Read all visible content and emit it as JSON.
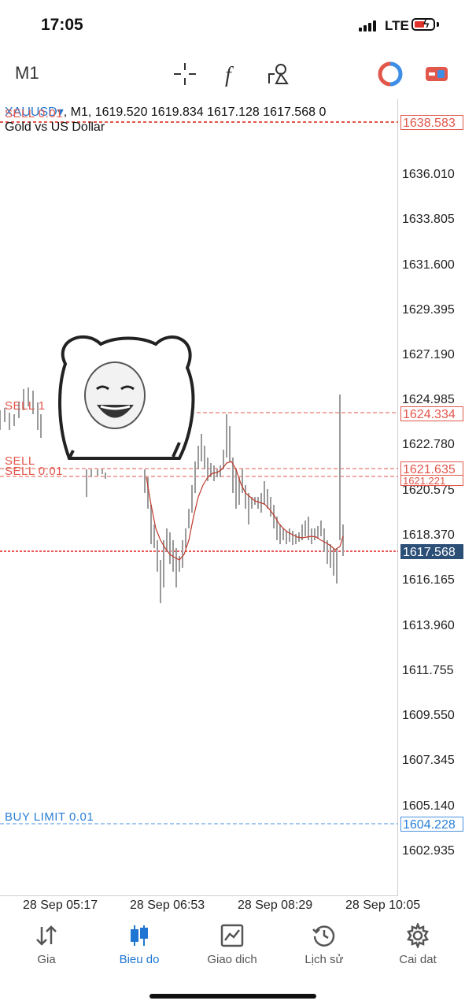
{
  "status": {
    "time": "17:05",
    "network": "LTE"
  },
  "toolbar": {
    "timeframe": "M1",
    "icons": [
      "crosshair-icon",
      "function-icon",
      "objects-icon",
      "one-click-trading-icon",
      "trade-panel-icon"
    ]
  },
  "chart": {
    "symbol": "XAUUSD",
    "header": ", M1, 1619.520 1619.834 1617.128 1617.568 0",
    "description": "Gold vs US Dollar",
    "price_scale": [
      "1636.010",
      "1633.805",
      "1631.600",
      "1629.395",
      "1627.190",
      "1624.985",
      "1622.780",
      "1620.575",
      "1618.370",
      "1616.165",
      "1613.960",
      "1611.755",
      "1609.550",
      "1607.345",
      "1605.140",
      "1602.935"
    ],
    "price_tags": {
      "sell_top": "1638.583",
      "sell_1": "1624.334",
      "sell_2": "1621.635",
      "sell_3": "1621.221",
      "current": "1617.568",
      "buy_limit": "1604.228"
    },
    "orders": {
      "sell_top": "SELL 0.01",
      "sell_1": "SELL 1",
      "sell_2": "SELL",
      "sell_3": "SELL 0.01",
      "buy_limit": "BUY LIMIT 0.01"
    },
    "time_axis": [
      "28 Sep 05:17",
      "28 Sep 06:53",
      "28 Sep 08:29",
      "28 Sep 10:05"
    ],
    "colors": {
      "sell": "#e2574c",
      "buy": "#2a7fd4",
      "current": "#2c4f78",
      "candles": "#9a9a9a",
      "ma": "#c0392b"
    }
  },
  "nav": {
    "items": [
      {
        "label": "Gia"
      },
      {
        "label": "Bieu do"
      },
      {
        "label": "Giao dich"
      },
      {
        "label": "Lịch sử"
      },
      {
        "label": "Cai dat"
      }
    ]
  }
}
